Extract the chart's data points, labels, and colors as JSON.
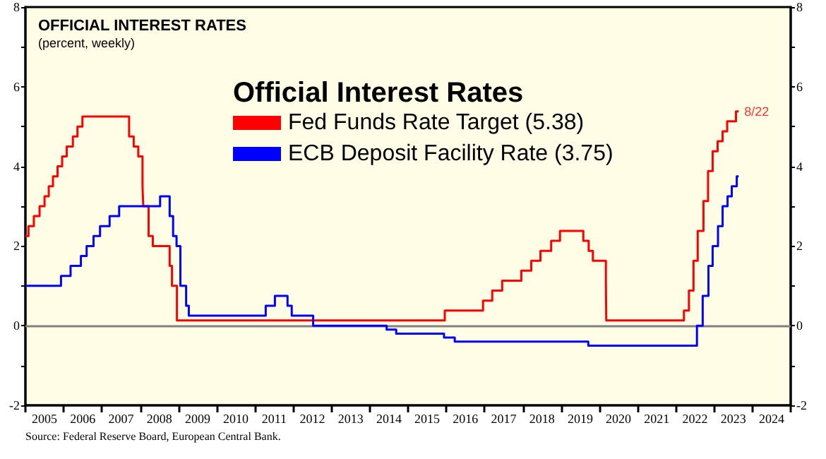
{
  "chart_data": {
    "type": "step",
    "title": "OFFICIAL INTEREST RATES",
    "subtitle": "(percent, weekly)",
    "legend_title": "Official Interest Rates",
    "legend": "top",
    "grid": false,
    "marker": "none",
    "line_style": "solid",
    "annotations": [
      {
        "text": "8/22",
        "x": 2023.64,
        "y": 5.38
      },
      "Source: Federal Reserve Board, European Central Bank."
    ],
    "ref_lines": [
      {
        "axis": "y",
        "value": 0,
        "color": "#808080"
      }
    ],
    "xlim": [
      2005,
      2025
    ],
    "xticks": [
      {
        "value": 2005,
        "label": null
      },
      {
        "value": 2005.5,
        "label": "2005"
      },
      {
        "value": 2006,
        "label": null
      },
      {
        "value": 2006.5,
        "label": "2006"
      },
      {
        "value": 2007,
        "label": null
      },
      {
        "value": 2007.5,
        "label": "2007"
      },
      {
        "value": 2008,
        "label": null
      },
      {
        "value": 2008.5,
        "label": "2008"
      },
      {
        "value": 2009,
        "label": null
      },
      {
        "value": 2009.5,
        "label": "2009"
      },
      {
        "value": 2010,
        "label": null
      },
      {
        "value": 2010.5,
        "label": "2010"
      },
      {
        "value": 2011,
        "label": null
      },
      {
        "value": 2011.5,
        "label": "2011"
      },
      {
        "value": 2012,
        "label": null
      },
      {
        "value": 2012.5,
        "label": "2012"
      },
      {
        "value": 2013,
        "label": null
      },
      {
        "value": 2013.5,
        "label": "2013"
      },
      {
        "value": 2014,
        "label": null
      },
      {
        "value": 2014.5,
        "label": "2014"
      },
      {
        "value": 2015,
        "label": null
      },
      {
        "value": 2015.5,
        "label": "2015"
      },
      {
        "value": 2016,
        "label": null
      },
      {
        "value": 2016.5,
        "label": "2016"
      },
      {
        "value": 2017,
        "label": null
      },
      {
        "value": 2017.5,
        "label": "2017"
      },
      {
        "value": 2018,
        "label": null
      },
      {
        "value": 2018.5,
        "label": "2018"
      },
      {
        "value": 2019,
        "label": null
      },
      {
        "value": 2019.5,
        "label": "2019"
      },
      {
        "value": 2020,
        "label": null
      },
      {
        "value": 2020.5,
        "label": "2020"
      },
      {
        "value": 2021,
        "label": null
      },
      {
        "value": 2021.5,
        "label": "2021"
      },
      {
        "value": 2022,
        "label": null
      },
      {
        "value": 2022.5,
        "label": "2022"
      },
      {
        "value": 2023,
        "label": null
      },
      {
        "value": 2023.5,
        "label": "2023"
      },
      {
        "value": 2024,
        "label": null
      },
      {
        "value": 2024.5,
        "label": "2024"
      },
      {
        "value": 2025,
        "label": null
      }
    ],
    "ylim": [
      -2,
      8
    ],
    "yticks": [
      -2,
      {
        "value": -1,
        "label": null
      },
      0,
      {
        "value": 1,
        "label": null
      },
      2,
      {
        "value": 3,
        "label": null
      },
      4,
      {
        "value": 5,
        "label": null
      },
      6,
      {
        "value": 7,
        "label": null
      },
      8
    ],
    "y2lim": [
      -2,
      8
    ],
    "y2ticks": [
      -2,
      {
        "value": -1,
        "label": null
      },
      0,
      {
        "value": 1,
        "label": null
      },
      2,
      {
        "value": 3,
        "label": null
      },
      4,
      {
        "value": 5,
        "label": null
      },
      6,
      {
        "value": 7,
        "label": null
      },
      8
    ],
    "series": [
      {
        "name": "Fed Funds Rate Target (5.38)",
        "color": "#ff0000",
        "x": [
          2005.0,
          2005.08,
          2005.22,
          2005.37,
          2005.5,
          2005.61,
          2005.72,
          2005.84,
          2005.96,
          2006.08,
          2006.24,
          2006.36,
          2006.49,
          2007.71,
          2007.83,
          2007.95,
          2008.06,
          2008.08,
          2008.22,
          2008.33,
          2008.77,
          2008.83,
          2008.96,
          2015.96,
          2016.96,
          2017.2,
          2017.46,
          2017.96,
          2018.22,
          2018.46,
          2018.74,
          2018.97,
          2019.58,
          2019.72,
          2019.83,
          2020.17,
          2020.18,
          2022.21,
          2022.34,
          2022.46,
          2022.57,
          2022.72,
          2022.84,
          2022.96,
          2023.09,
          2023.22,
          2023.34,
          2023.57,
          2023.64
        ],
        "values": [
          2.25,
          2.5,
          2.75,
          3.0,
          3.25,
          3.5,
          3.75,
          4.0,
          4.25,
          4.5,
          4.75,
          5.0,
          5.25,
          4.75,
          4.5,
          4.25,
          3.5,
          3.0,
          2.25,
          2.0,
          1.5,
          1.0,
          0.13,
          0.38,
          0.63,
          0.88,
          1.13,
          1.38,
          1.63,
          1.88,
          2.13,
          2.38,
          2.13,
          1.88,
          1.63,
          1.13,
          0.13,
          0.38,
          0.88,
          1.63,
          2.38,
          3.13,
          3.88,
          4.38,
          4.63,
          4.88,
          5.13,
          5.38,
          5.38
        ]
      },
      {
        "name": "ECB Deposit Facility Rate (3.75)",
        "color": "#0000ff",
        "x": [
          2005.0,
          2005.93,
          2006.18,
          2006.45,
          2006.6,
          2006.78,
          2006.95,
          2007.2,
          2007.45,
          2008.52,
          2008.77,
          2008.86,
          2008.95,
          2009.05,
          2009.2,
          2009.27,
          2011.28,
          2011.52,
          2011.85,
          2011.96,
          2012.52,
          2014.44,
          2014.69,
          2015.94,
          2016.22,
          2019.71,
          2022.55,
          2022.7,
          2022.85,
          2022.96,
          2023.1,
          2023.22,
          2023.35,
          2023.46,
          2023.59,
          2023.64
        ],
        "values": [
          1.0,
          1.25,
          1.5,
          1.75,
          2.0,
          2.25,
          2.5,
          2.75,
          3.0,
          3.25,
          2.75,
          2.25,
          2.0,
          1.0,
          0.5,
          0.25,
          0.5,
          0.75,
          0.5,
          0.25,
          0.0,
          -0.1,
          -0.2,
          -0.3,
          -0.4,
          -0.5,
          0.0,
          0.75,
          1.5,
          2.0,
          2.5,
          3.0,
          3.25,
          3.5,
          3.75,
          3.75
        ]
      }
    ]
  }
}
